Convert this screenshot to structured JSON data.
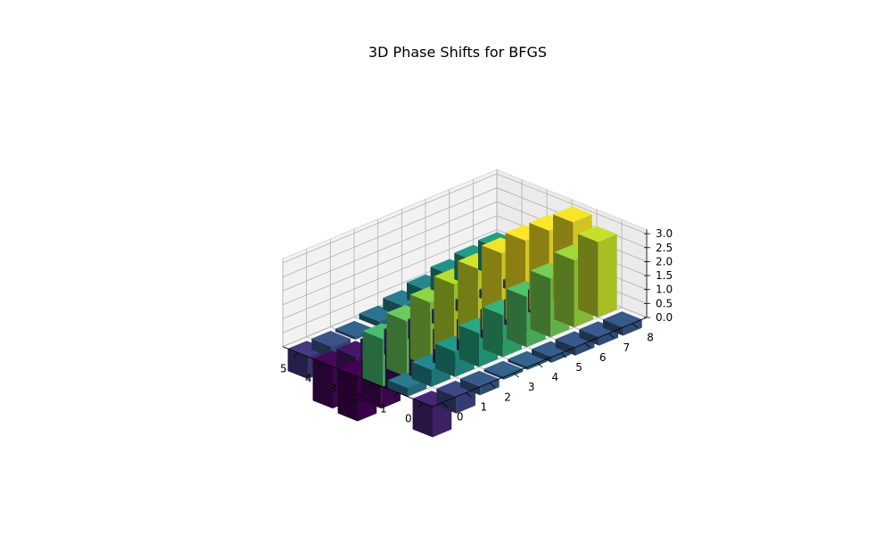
{
  "chart_data": {
    "type": "bar3d",
    "title": "3D Phase Shifts for BFGS",
    "xlabel": "",
    "ylabel": "",
    "zlabel": "",
    "x_ticks": [
      "0",
      "1",
      "2",
      "3",
      "4",
      "5"
    ],
    "y_ticks": [
      "0",
      "1",
      "2",
      "3",
      "4",
      "5",
      "6",
      "7",
      "8"
    ],
    "z_ticks": [
      "0.0",
      "0.5",
      "1.0",
      "1.5",
      "2.0",
      "2.5",
      "3.0"
    ],
    "zlim": [
      0,
      3.1
    ],
    "grid": true,
    "colormap": "viridis",
    "series": [
      {
        "x": 0,
        "y": 0,
        "z": -1.1
      },
      {
        "x": 0,
        "y": 1,
        "z": -0.6
      },
      {
        "x": 0,
        "y": 2,
        "z": -0.3
      },
      {
        "x": 0,
        "y": 3,
        "z": -0.1
      },
      {
        "x": 0,
        "y": 4,
        "z": -0.1
      },
      {
        "x": 0,
        "y": 5,
        "z": -0.2
      },
      {
        "x": 0,
        "y": 6,
        "z": -0.3
      },
      {
        "x": 0,
        "y": 7,
        "z": -0.3
      },
      {
        "x": 0,
        "y": 8,
        "z": -0.3
      },
      {
        "x": 1,
        "y": 0,
        "z": 0.3
      },
      {
        "x": 1,
        "y": 1,
        "z": 0.6
      },
      {
        "x": 1,
        "y": 2,
        "z": 0.9
      },
      {
        "x": 1,
        "y": 3,
        "z": 1.2
      },
      {
        "x": 1,
        "y": 4,
        "z": 1.5
      },
      {
        "x": 1,
        "y": 5,
        "z": 1.8
      },
      {
        "x": 1,
        "y": 6,
        "z": 2.1
      },
      {
        "x": 1,
        "y": 7,
        "z": 2.4
      },
      {
        "x": 1,
        "y": 8,
        "z": 2.7
      },
      {
        "x": 2,
        "y": 0,
        "z": 1.7
      },
      {
        "x": 2,
        "y": 1,
        "z": 2.0
      },
      {
        "x": 2,
        "y": 2,
        "z": 2.3
      },
      {
        "x": 2,
        "y": 3,
        "z": 2.6
      },
      {
        "x": 2,
        "y": 4,
        "z": 2.8
      },
      {
        "x": 2,
        "y": 5,
        "z": 3.0
      },
      {
        "x": 2,
        "y": 6,
        "z": 3.1
      },
      {
        "x": 2,
        "y": 7,
        "z": 3.1
      },
      {
        "x": 2,
        "y": 8,
        "z": 3.05
      },
      {
        "x": 3,
        "y": 0,
        "z": -1.6
      },
      {
        "x": 3,
        "y": 1,
        "z": -1.5
      },
      {
        "x": 3,
        "y": 2,
        "z": -1.4
      },
      {
        "x": 3,
        "y": 3,
        "z": -1.3
      },
      {
        "x": 3,
        "y": 4,
        "z": -1.2
      },
      {
        "x": 3,
        "y": 5,
        "z": -1.1
      },
      {
        "x": 3,
        "y": 6,
        "z": -1.0
      },
      {
        "x": 3,
        "y": 7,
        "z": -0.9
      },
      {
        "x": 3,
        "y": 8,
        "z": -0.8
      },
      {
        "x": 4,
        "y": 0,
        "z": -1.5
      },
      {
        "x": 4,
        "y": 1,
        "z": -1.3
      },
      {
        "x": 4,
        "y": 2,
        "z": -1.1
      },
      {
        "x": 4,
        "y": 3,
        "z": -0.9
      },
      {
        "x": 4,
        "y": 4,
        "z": -0.7
      },
      {
        "x": 4,
        "y": 5,
        "z": -0.5
      },
      {
        "x": 4,
        "y": 6,
        "z": -0.4
      },
      {
        "x": 4,
        "y": 7,
        "z": -0.3
      },
      {
        "x": 4,
        "y": 8,
        "z": -0.3
      },
      {
        "x": 5,
        "y": 0,
        "z": -0.8
      },
      {
        "x": 5,
        "y": 1,
        "z": -0.4
      },
      {
        "x": 5,
        "y": 2,
        "z": -0.1
      },
      {
        "x": 5,
        "y": 3,
        "z": 0.2
      },
      {
        "x": 5,
        "y": 4,
        "z": 0.4
      },
      {
        "x": 5,
        "y": 5,
        "z": 0.6
      },
      {
        "x": 5,
        "y": 6,
        "z": 0.8
      },
      {
        "x": 5,
        "y": 7,
        "z": 0.95
      },
      {
        "x": 5,
        "y": 8,
        "z": 1.05
      }
    ]
  }
}
